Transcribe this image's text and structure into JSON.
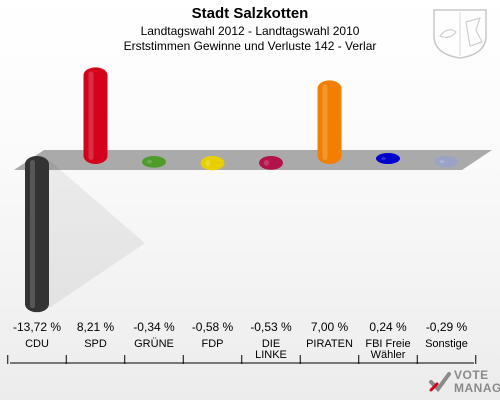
{
  "header": {
    "title": "Stadt Salzkotten",
    "subtitle1": "Landtagswahl 2012 - Landtagswahl 2010",
    "subtitle2": "Erststimmen Gewinne und Verluste 142 - Verlar"
  },
  "logo": {
    "line1": "VOTE",
    "line2": "MANAGER"
  },
  "colors": {
    "CDU": "#333333",
    "SPD": "#d4021b",
    "GRUENE": "#4e9c2a",
    "FDP": "#e8d000",
    "LINKE": "#b3124a",
    "PIRATEN": "#f27f00",
    "FBI": "#0000cc",
    "Sonstige": "#9aa3c4"
  },
  "chart_data": {
    "type": "bar",
    "title": "Erststimmen Gewinne und Verluste 142 - Verlar",
    "categories": [
      "CDU",
      "SPD",
      "GRÜNE",
      "FDP",
      "DIE LINKE",
      "PIRATEN",
      "FBI Freie Wähler",
      "Sonstige"
    ],
    "values": [
      -13.72,
      8.21,
      -0.34,
      -0.58,
      -0.53,
      7.0,
      0.24,
      -0.29
    ],
    "value_labels": [
      "-13,72 %",
      "8,21 %",
      "-0,34 %",
      "-0,58 %",
      "-0,53 %",
      "7,00 %",
      "0,24 %",
      "-0,29 %"
    ],
    "category_lines": [
      [
        "CDU"
      ],
      [
        "SPD"
      ],
      [
        "GRÜNE"
      ],
      [
        "FDP"
      ],
      [
        "DIE",
        "LINKE"
      ],
      [
        "PIRATEN"
      ],
      [
        "FBI Freie",
        "Wähler"
      ],
      [
        "Sonstige"
      ]
    ],
    "series": [
      {
        "values": [
          -13.72,
          8.21,
          -0.34,
          -0.58,
          -0.53,
          7.0,
          0.24,
          -0.29
        ]
      }
    ]
  }
}
